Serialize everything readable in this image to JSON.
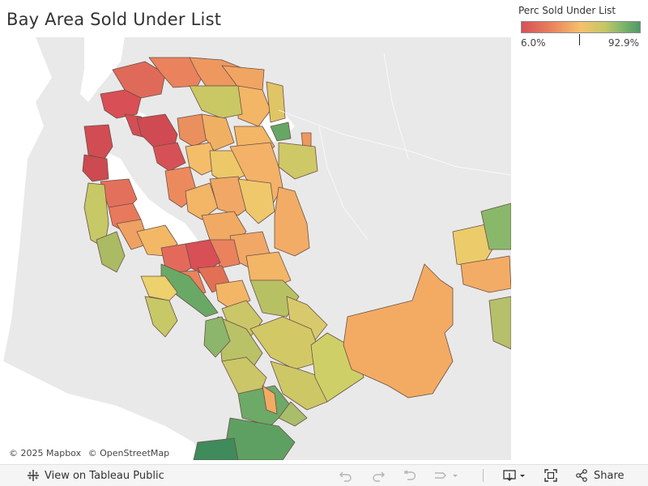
{
  "title": "Bay Area Sold Under List",
  "legend": {
    "title": "Perc Sold Under List",
    "min_label": "6.0%",
    "max_label": "92.9%",
    "min_value": 6.0,
    "max_value": 92.9,
    "marker_value": 48.0,
    "colors": [
      "#d64f57",
      "#e9825d",
      "#f6c06c",
      "#c6c766",
      "#82b56b",
      "#4e9a66"
    ]
  },
  "map": {
    "water_color": "#ffffff",
    "land_color": "#e9e9e9",
    "attribution": [
      "© 2025 Mapbox",
      "© OpenStreetMap"
    ]
  },
  "toolbar": {
    "view_label": "View on Tableau Public",
    "share_label": "Share",
    "icons": [
      "tableau-icon",
      "undo-icon",
      "redo-icon",
      "revert-icon",
      "pause-icon",
      "download-icon",
      "fullscreen-icon",
      "share-icon"
    ]
  }
}
